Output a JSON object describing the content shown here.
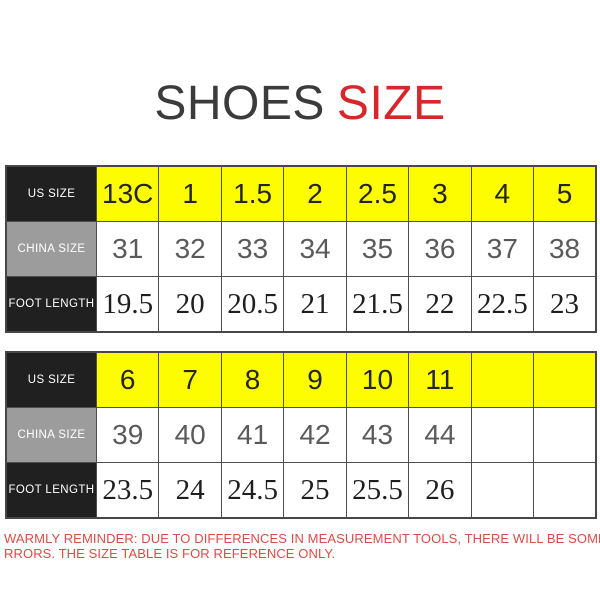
{
  "title": {
    "part_black": "SHOES",
    "part_red": "SIZE"
  },
  "chart_data": [
    {
      "type": "table",
      "title": "SHOES SIZE (table 1)",
      "rows": [
        [
          "US SIZE",
          "13C",
          "1",
          "1.5",
          "2",
          "2.5",
          "3",
          "4",
          "5"
        ],
        [
          "CHINA SIZE",
          "31",
          "32",
          "33",
          "34",
          "35",
          "36",
          "37",
          "38"
        ],
        [
          "FOOT LENGTH",
          "19.5",
          "20",
          "20.5",
          "21",
          "21.5",
          "22",
          "22.5",
          "23"
        ]
      ]
    },
    {
      "type": "table",
      "title": "SHOES SIZE (table 2)",
      "rows": [
        [
          "US SIZE",
          "6",
          "7",
          "8",
          "9",
          "10",
          "11",
          "",
          ""
        ],
        [
          "CHINA SIZE",
          "39",
          "40",
          "41",
          "42",
          "43",
          "44",
          "",
          ""
        ],
        [
          "FOOT LENGTH",
          "23.5",
          "24",
          "24.5",
          "25",
          "25.5",
          "26",
          "",
          ""
        ]
      ]
    }
  ],
  "warning": {
    "line1": "WARMLY REMINDER: DUE TO DIFFERENCES IN MEASUREMENT TOOLS, THERE WILL BE SOME E",
    "line2": "RRORS. THE SIZE TABLE IS FOR REFERENCE ONLY."
  },
  "colors": {
    "title_black": "#3b3b3b",
    "title_red": "#d8262b",
    "header_black_cell": "#202020",
    "header_gray_cell": "#9c9c9c",
    "us_row_yellow": "#fdfd00",
    "border": "#4f4f4f",
    "warning_red": "#dc4b46"
  }
}
